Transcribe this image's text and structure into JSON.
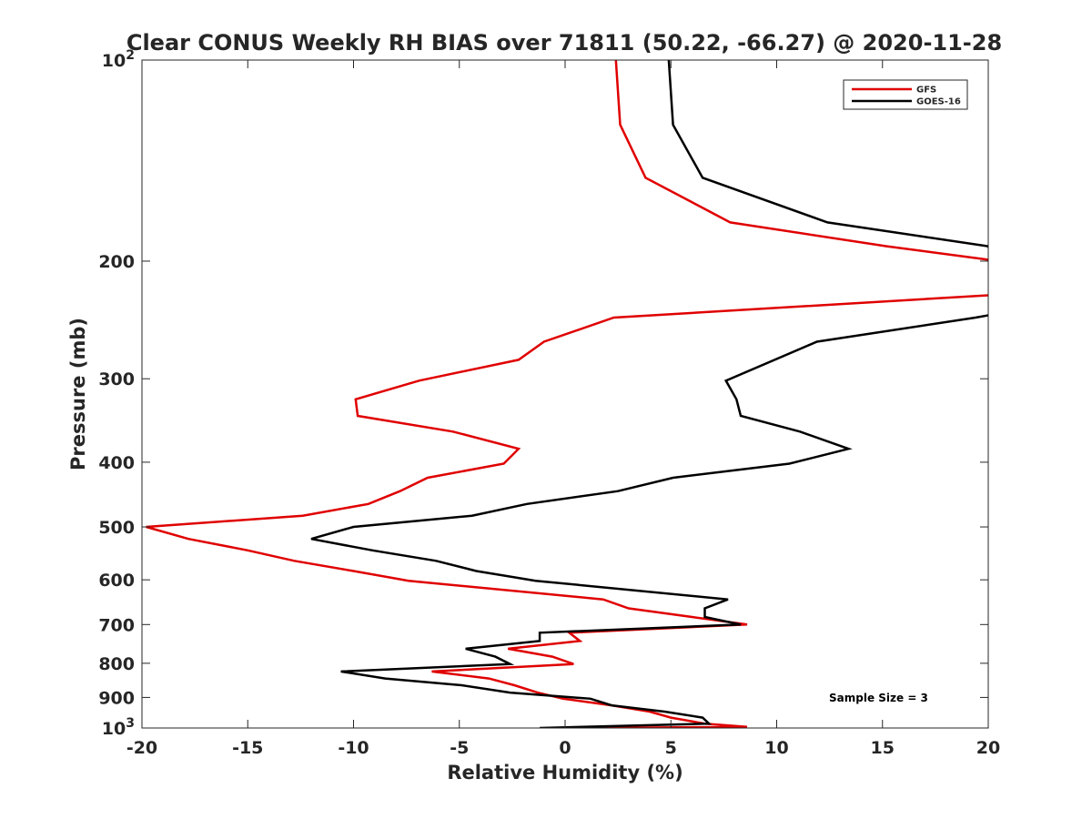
{
  "chart_data": {
    "type": "line",
    "title": "Clear CONUS Weekly RH BIAS over 71811 (50.22, -66.27) @ 2020-11-28",
    "xlabel": "Relative Humidity (%)",
    "ylabel": "Pressure (mb)",
    "xlim": [
      -20,
      20
    ],
    "ylim": [
      100,
      1000
    ],
    "y_scale": "log",
    "y_reversed": true,
    "grid": false,
    "legend_position": "top-right",
    "x_ticks": [
      {
        "value": -20,
        "label": "-20"
      },
      {
        "value": -15,
        "label": "-15"
      },
      {
        "value": -10,
        "label": "-10"
      },
      {
        "value": -5,
        "label": "-5"
      },
      {
        "value": 0,
        "label": "0"
      },
      {
        "value": 5,
        "label": "5"
      },
      {
        "value": 10,
        "label": "10"
      },
      {
        "value": 15,
        "label": "15"
      },
      {
        "value": 20,
        "label": "20"
      }
    ],
    "y_ticks": [
      {
        "value": 100,
        "label": "10",
        "sup": "2"
      },
      {
        "value": 200,
        "label": "200",
        "sup": ""
      },
      {
        "value": 300,
        "label": "300",
        "sup": ""
      },
      {
        "value": 400,
        "label": "400",
        "sup": ""
      },
      {
        "value": 500,
        "label": "500",
        "sup": ""
      },
      {
        "value": 600,
        "label": "600",
        "sup": ""
      },
      {
        "value": 700,
        "label": "700",
        "sup": ""
      },
      {
        "value": 800,
        "label": "800",
        "sup": ""
      },
      {
        "value": 900,
        "label": "900",
        "sup": ""
      },
      {
        "value": 1000,
        "label": "10",
        "sup": "3"
      }
    ],
    "annotation": "Sample Size = 3",
    "series": [
      {
        "name": "GFS",
        "color": "#e00000",
        "points": [
          [
            2.4,
            100
          ],
          [
            2.6,
            125
          ],
          [
            3.8,
            150
          ],
          [
            7.8,
            175
          ],
          [
            15.2,
            190
          ],
          [
            20.0,
            199
          ],
          [
            21.0,
            222
          ],
          [
            20.0,
            225
          ],
          [
            2.3,
            243
          ],
          [
            -1.0,
            264
          ],
          [
            -2.2,
            281
          ],
          [
            -6.9,
            302
          ],
          [
            -9.9,
            322
          ],
          [
            -9.8,
            341
          ],
          [
            -5.3,
            360
          ],
          [
            -2.2,
            382
          ],
          [
            -2.9,
            402
          ],
          [
            -6.5,
            422
          ],
          [
            -7.8,
            442
          ],
          [
            -9.3,
            462
          ],
          [
            -12.4,
            481
          ],
          [
            -19.8,
            500
          ],
          [
            -17.8,
            521
          ],
          [
            -15.0,
            542
          ],
          [
            -12.8,
            562
          ],
          [
            -10.0,
            582
          ],
          [
            -7.4,
            602
          ],
          [
            1.8,
            642
          ],
          [
            3.0,
            662
          ],
          [
            6.0,
            682
          ],
          [
            8.6,
            700
          ],
          [
            0.2,
            720
          ],
          [
            0.7,
            741
          ],
          [
            -2.7,
            761
          ],
          [
            -0.6,
            782
          ],
          [
            0.4,
            802
          ],
          [
            -6.3,
            823
          ],
          [
            -3.6,
            843
          ],
          [
            -2.4,
            863
          ],
          [
            -1.3,
            885
          ],
          [
            -0.1,
            904
          ],
          [
            2.2,
            925
          ],
          [
            4.0,
            945
          ],
          [
            5.0,
            965
          ],
          [
            6.6,
            985
          ],
          [
            8.6,
            996
          ],
          [
            0.5,
            1000
          ]
        ]
      },
      {
        "name": "GOES-16",
        "color": "#000000",
        "points": [
          [
            4.9,
            100
          ],
          [
            5.1,
            125
          ],
          [
            6.5,
            150
          ],
          [
            12.4,
            175
          ],
          [
            20.0,
            190
          ],
          [
            21.0,
            238
          ],
          [
            19.4,
            243
          ],
          [
            11.9,
            264
          ],
          [
            7.6,
            302
          ],
          [
            8.1,
            322
          ],
          [
            8.3,
            341
          ],
          [
            11.1,
            360
          ],
          [
            13.4,
            382
          ],
          [
            10.6,
            402
          ],
          [
            5.1,
            422
          ],
          [
            2.5,
            442
          ],
          [
            -1.8,
            462
          ],
          [
            -4.4,
            481
          ],
          [
            -10.0,
            500
          ],
          [
            -12.0,
            521
          ],
          [
            -9.1,
            542
          ],
          [
            -6.1,
            562
          ],
          [
            -4.2,
            582
          ],
          [
            -1.4,
            602
          ],
          [
            7.7,
            642
          ],
          [
            6.6,
            662
          ],
          [
            6.6,
            682
          ],
          [
            8.3,
            700
          ],
          [
            -1.2,
            720
          ],
          [
            -1.2,
            741
          ],
          [
            -4.7,
            761
          ],
          [
            -3.3,
            782
          ],
          [
            -2.6,
            802
          ],
          [
            -10.6,
            823
          ],
          [
            -8.5,
            843
          ],
          [
            -4.9,
            863
          ],
          [
            -2.6,
            885
          ],
          [
            1.2,
            904
          ],
          [
            2.2,
            925
          ],
          [
            4.7,
            945
          ],
          [
            6.5,
            965
          ],
          [
            6.8,
            985
          ],
          [
            -1.2,
            1000
          ]
        ]
      }
    ]
  }
}
